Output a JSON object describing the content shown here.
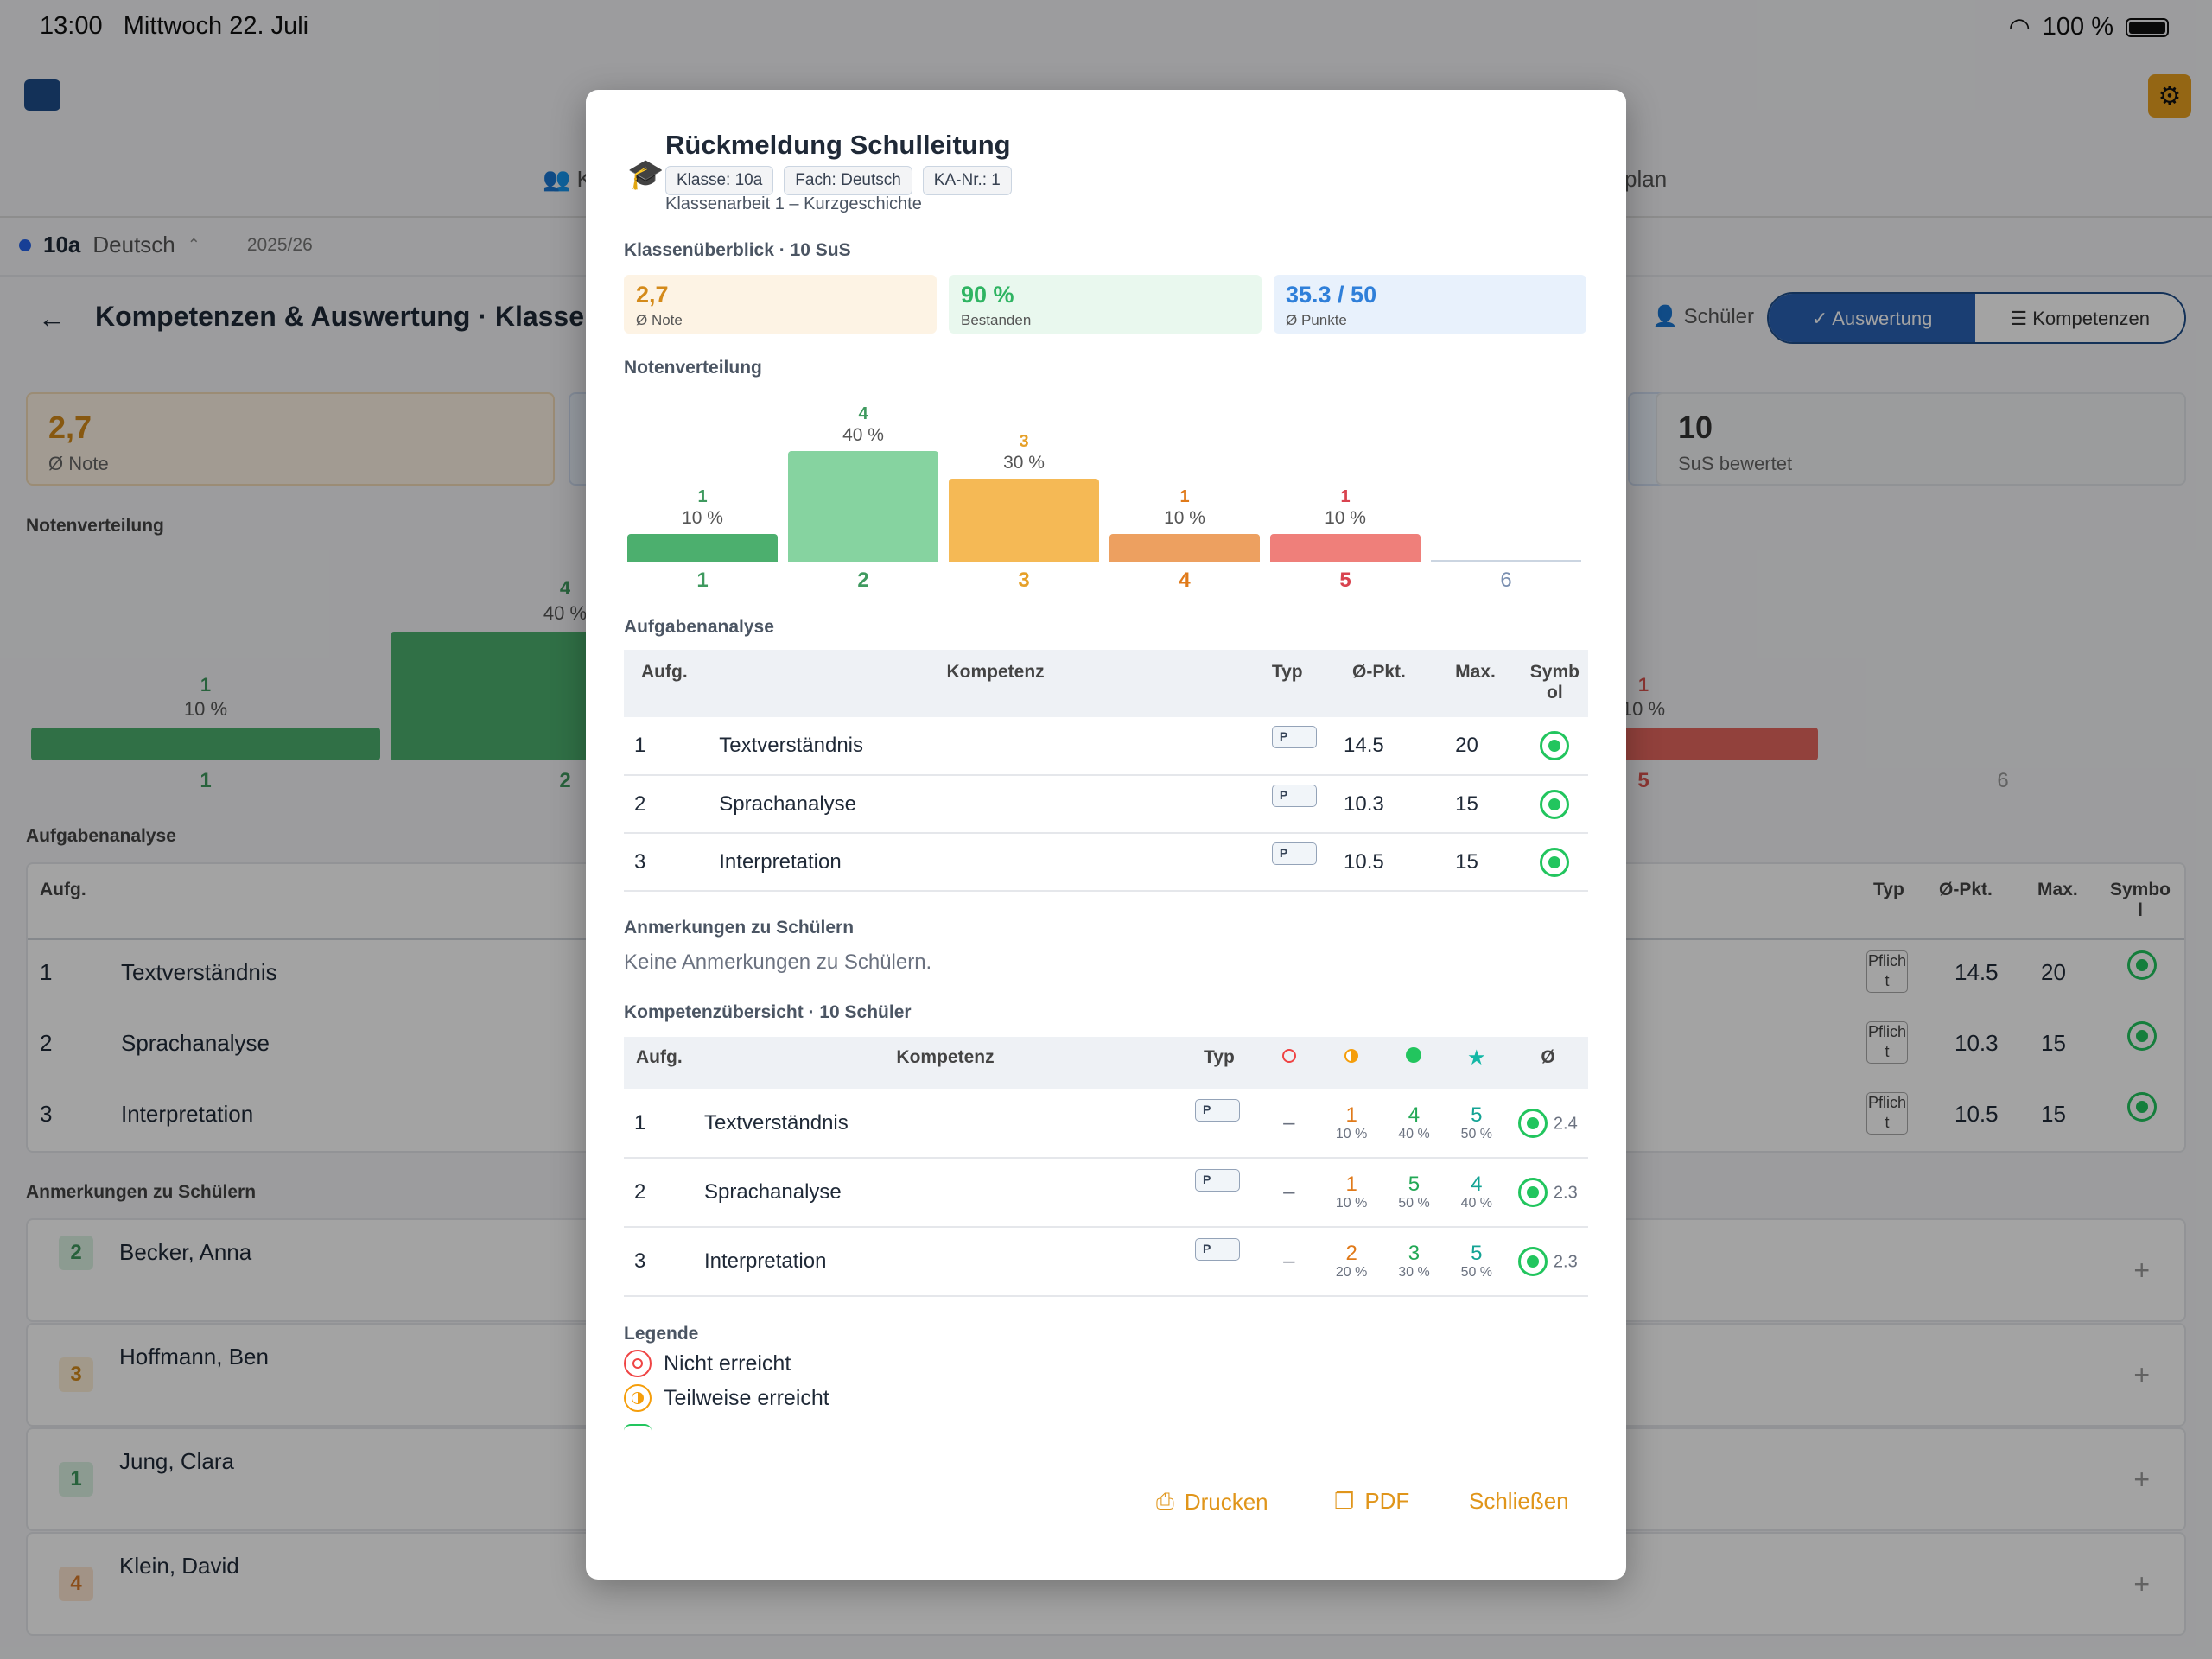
{
  "status": {
    "time": "13:00",
    "date": "Mittwoch 22. Juli",
    "battery": "100 %"
  },
  "background": {
    "nav_tab_left": "K",
    "nav_tab_right": "plan",
    "context": {
      "class": "10a",
      "subject": "Deutsch",
      "year": "2025/26"
    },
    "page_title": "Kompetenzen & Auswertung · Klassen",
    "students_label": "Schüler",
    "seg_active": "Auswertung",
    "seg_inactive": "Kompetenzen",
    "card_note": {
      "value": "2,7",
      "label": "Ø Note"
    },
    "card_count": {
      "value": "10",
      "label": "SuS bewertet"
    },
    "section_dist": "Notenverteilung",
    "section_tasks": "Aufgabenanalyse",
    "section_notes": "Anmerkungen zu Schülern",
    "dist": {
      "g1": {
        "count": "1",
        "pct": "10 %",
        "label": "1"
      },
      "g2": {
        "count": "4",
        "pct": "40 %",
        "label": "2"
      },
      "g5": {
        "count": "1",
        "pct": "10 %",
        "label": "5"
      },
      "g6": {
        "label": "6"
      }
    },
    "table": {
      "h_task": "Aufg.",
      "h_type": "Typ",
      "h_avg": "Ø-Pkt.",
      "h_max": "Max.",
      "h_sym": "Symbol",
      "rows": [
        {
          "n": "1",
          "name": "Textverständnis",
          "type": "Pflicht",
          "avg": "14.5",
          "max": "20"
        },
        {
          "n": "2",
          "name": "Sprachanalyse",
          "type": "Pflicht",
          "avg": "10.3",
          "max": "15"
        },
        {
          "n": "3",
          "name": "Interpretation",
          "type": "Pflicht",
          "avg": "10.5",
          "max": "15"
        }
      ]
    },
    "students": [
      {
        "grade": "2",
        "name": "Becker, Anna"
      },
      {
        "grade": "3",
        "name": "Hoffmann, Ben"
      },
      {
        "grade": "1",
        "name": "Jung, Clara"
      },
      {
        "grade": "4",
        "name": "Klein, David"
      }
    ]
  },
  "modal": {
    "title": "Rückmeldung Schulleitung",
    "chips": [
      "Klasse: 10a",
      "Fach: Deutsch",
      "KA-Nr.: 1"
    ],
    "subtitle": "Klassenarbeit 1 – Kurzgeschichte",
    "overview_title": "Klassenüberblick · 10 SuS",
    "kpis": [
      {
        "value": "2,7",
        "label": "Ø Note"
      },
      {
        "value": "90 %",
        "label": "Bestanden"
      },
      {
        "value": "35.3 / 50",
        "label": "Ø Punkte"
      }
    ],
    "dist_title": "Notenverteilung",
    "tasks_title": "Aufgabenanalyse",
    "tasks": {
      "h_task": "Aufg.",
      "h_comp": "Kompetenz",
      "h_type": "Typ",
      "h_avg": "Ø-Pkt.",
      "h_max": "Max.",
      "h_sym": "Symbol",
      "rows": [
        {
          "n": "1",
          "name": "Textverständnis",
          "type": "P",
          "avg": "14.5",
          "max": "20"
        },
        {
          "n": "2",
          "name": "Sprachanalyse",
          "type": "P",
          "avg": "10.3",
          "max": "15"
        },
        {
          "n": "3",
          "name": "Interpretation",
          "type": "P",
          "avg": "10.5",
          "max": "15"
        }
      ]
    },
    "notes_title": "Anmerkungen zu Schülern",
    "notes_empty": "Keine Anmerkungen zu Schülern.",
    "comp_title": "Kompetenzübersicht · 10 Schüler",
    "comp": {
      "h_task": "Aufg.",
      "h_comp": "Kompetenz",
      "h_type": "Typ",
      "h_avg": "Ø",
      "rows": [
        {
          "n": "1",
          "name": "Textverständnis",
          "type": "P",
          "c0": "–",
          "c1": "1",
          "p1": "10 %",
          "c2": "4",
          "p2": "40 %",
          "c3": "5",
          "p3": "50 %",
          "avg": "2.4"
        },
        {
          "n": "2",
          "name": "Sprachanalyse",
          "type": "P",
          "c0": "–",
          "c1": "1",
          "p1": "10 %",
          "c2": "5",
          "p2": "50 %",
          "c3": "4",
          "p3": "40 %",
          "avg": "2.3"
        },
        {
          "n": "3",
          "name": "Interpretation",
          "type": "P",
          "c0": "–",
          "c1": "2",
          "p1": "20 %",
          "c2": "3",
          "p2": "30 %",
          "c3": "5",
          "p3": "50 %",
          "avg": "2.3"
        }
      ]
    },
    "legend_title": "Legende",
    "legend": [
      "Nicht erreicht",
      "Teilweise erreicht"
    ],
    "buttons": {
      "print": "Drucken",
      "pdf": "PDF",
      "close": "Schließen"
    }
  },
  "chart_data": {
    "type": "bar",
    "title": "Notenverteilung",
    "categories": [
      "1",
      "2",
      "3",
      "4",
      "5",
      "6"
    ],
    "values": [
      1,
      4,
      3,
      1,
      1,
      0
    ],
    "percent_labels": [
      "10 %",
      "40 %",
      "30 %",
      "10 %",
      "10 %",
      ""
    ],
    "colors": [
      "#4caf6e",
      "#86d3a0",
      "#f5b955",
      "#eda060",
      "#ef7f7a",
      "#cbd5e1"
    ]
  }
}
